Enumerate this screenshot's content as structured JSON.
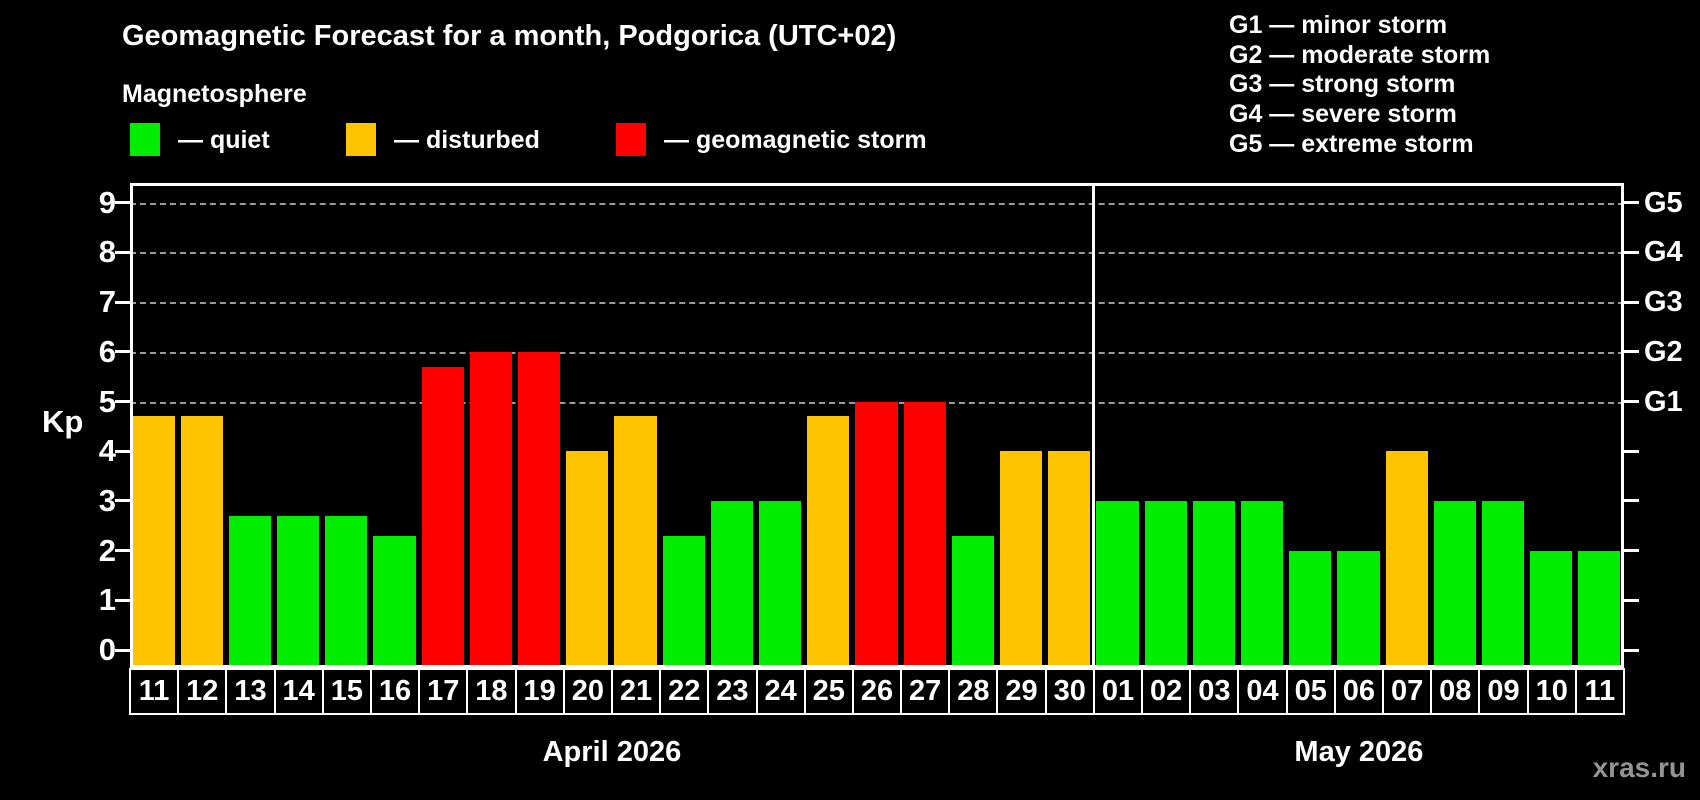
{
  "title": "Geomagnetic Forecast for a month, Podgorica (UTC+02)",
  "magnetosphere": {
    "label": "Magnetosphere",
    "legend": [
      {
        "name": "quiet",
        "label": "— quiet",
        "color": "#00ec00"
      },
      {
        "name": "disturbed",
        "label": "— disturbed",
        "color": "#ffc400"
      },
      {
        "name": "storm",
        "label": "— geomagnetic storm",
        "color": "#ff0000"
      }
    ]
  },
  "g_scale_legend": [
    {
      "code": "G1",
      "label": "G1 — minor storm"
    },
    {
      "code": "G2",
      "label": "G2 — moderate storm"
    },
    {
      "code": "G3",
      "label": "G3 — strong storm"
    },
    {
      "code": "G4",
      "label": "G4 — severe storm"
    },
    {
      "code": "G5",
      "label": "G5 — extreme storm"
    }
  ],
  "watermark": "xras.ru",
  "chart_data": {
    "type": "bar",
    "ylabel": "Kp",
    "ylim": [
      0,
      9
    ],
    "yticks": [
      0,
      1,
      2,
      3,
      4,
      5,
      6,
      7,
      8,
      9
    ],
    "gridlines_at": [
      5,
      6,
      7,
      8,
      9
    ],
    "grid_style": "dashed horizontal lines only at storm levels Kp 5-9",
    "right_axis_labels": {
      "5": "G1",
      "6": "G2",
      "7": "G3",
      "8": "G4",
      "9": "G5"
    },
    "legend_position": "top-left above plot",
    "status_colors": {
      "quiet": "#00ec00",
      "disturbed": "#ffc400",
      "storm": "#ff0000"
    },
    "months": [
      {
        "label": "April 2026",
        "days": [
          "11",
          "12",
          "13",
          "14",
          "15",
          "16",
          "17",
          "18",
          "19",
          "20",
          "21",
          "22",
          "23",
          "24",
          "25",
          "26",
          "27",
          "28",
          "29",
          "30"
        ],
        "kp": [
          4.7,
          4.7,
          2.7,
          2.7,
          2.7,
          2.3,
          5.7,
          6.0,
          6.0,
          4.0,
          4.7,
          2.3,
          3.0,
          3.0,
          4.7,
          5.0,
          5.0,
          2.3,
          4.0,
          4.0
        ],
        "status": [
          "disturbed",
          "disturbed",
          "quiet",
          "quiet",
          "quiet",
          "quiet",
          "storm",
          "storm",
          "storm",
          "disturbed",
          "disturbed",
          "quiet",
          "quiet",
          "quiet",
          "disturbed",
          "storm",
          "storm",
          "quiet",
          "disturbed",
          "disturbed"
        ]
      },
      {
        "label": "May 2026",
        "days": [
          "01",
          "02",
          "03",
          "04",
          "05",
          "06",
          "07",
          "08",
          "09",
          "10",
          "11"
        ],
        "kp": [
          3.0,
          3.0,
          3.0,
          3.0,
          2.0,
          2.0,
          4.0,
          3.0,
          3.0,
          2.0,
          2.0
        ],
        "status": [
          "quiet",
          "quiet",
          "quiet",
          "quiet",
          "quiet",
          "quiet",
          "disturbed",
          "quiet",
          "quiet",
          "quiet",
          "quiet"
        ]
      }
    ]
  }
}
